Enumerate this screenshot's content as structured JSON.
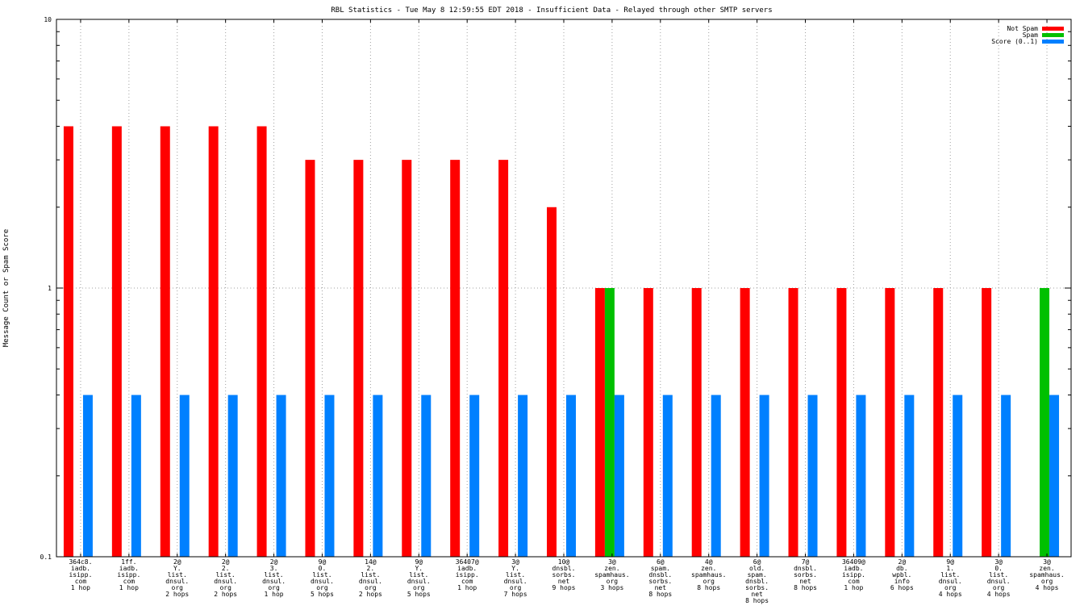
{
  "chart_data": {
    "type": "bar",
    "title": "RBL Statistics - Tue May  8 12:59:55 EDT 2018 - Insufficient Data - Relayed through other SMTP servers",
    "ylabel": "Message Count or Spam Score",
    "xlabel": "",
    "yscale": "log",
    "ylim": [
      0.1,
      10
    ],
    "yticks": [
      "10",
      "1",
      "0.1"
    ],
    "grid": true,
    "legend_position": "top-right",
    "categories": [
      [
        "364c8.",
        "iadb.",
        "isipp.",
        "com",
        "1 hop"
      ],
      [
        "1ff.",
        "iadb.",
        "isipp.",
        "com",
        "1 hop"
      ],
      [
        "2@",
        "Y.",
        "list.",
        "dnsul.",
        "org",
        "2 hops"
      ],
      [
        "2@",
        "2.",
        "list.",
        "dnsul.",
        "org",
        "2 hops"
      ],
      [
        "2@",
        "3.",
        "list.",
        "dnsul.",
        "org",
        "1 hop"
      ],
      [
        "9@",
        "0.",
        "list.",
        "dnsul.",
        "org",
        "5 hops"
      ],
      [
        "14@",
        "2.",
        "list.",
        "dnsul.",
        "org",
        "2 hops"
      ],
      [
        "9@",
        "Y.",
        "list.",
        "dnsul.",
        "org",
        "5 hops"
      ],
      [
        "36407@",
        "iadb.",
        "isipp.",
        "com",
        "1 hop"
      ],
      [
        "3@",
        "Y.",
        "list.",
        "dnsul.",
        "org",
        "7 hops"
      ],
      [
        "10@",
        "dnsbl.",
        "sorbs.",
        "net",
        "9 hops"
      ],
      [
        "3@",
        "zen.",
        "spamhaus.",
        "org",
        "3 hops"
      ],
      [
        "6@",
        "spam.",
        "dnsbl.",
        "sorbs.",
        "net",
        "8 hops"
      ],
      [
        "4@",
        "zen.",
        "spamhaus.",
        "org",
        "8 hops"
      ],
      [
        "6@",
        "old.",
        "spam.",
        "dnsbl.",
        "sorbs.",
        "net",
        "8 hops"
      ],
      [
        "7@",
        "dnsbl.",
        "sorbs.",
        "net",
        "8 hops"
      ],
      [
        "36409@",
        "iadb.",
        "isipp.",
        "com",
        "1 hop"
      ],
      [
        "2@",
        "db.",
        "wpbl.",
        "info",
        "6 hops"
      ],
      [
        "9@",
        "1.",
        "list.",
        "dnsul.",
        "org",
        "4 hops"
      ],
      [
        "3@",
        "0.",
        "list.",
        "dnsul.",
        "org",
        "4 hops"
      ],
      [
        "3@",
        "zen.",
        "spamhaus.",
        "org",
        "4 hops"
      ]
    ],
    "series": [
      {
        "name": "Not Spam",
        "color": "#ff0000",
        "values": [
          4,
          4,
          4,
          4,
          4,
          3,
          3,
          3,
          3,
          3,
          2,
          1,
          1,
          1,
          1,
          1,
          1,
          1,
          1,
          1,
          0
        ]
      },
      {
        "name": "Spam",
        "color": "#00c000",
        "values": [
          0,
          0,
          0,
          0,
          0,
          0,
          0,
          0,
          0,
          0,
          0,
          1,
          0,
          0,
          0,
          0,
          0,
          0,
          0,
          0,
          1
        ]
      },
      {
        "name": "Score (0..1)",
        "color": "#0080ff",
        "values": [
          0.4,
          0.4,
          0.4,
          0.4,
          0.4,
          0.4,
          0.4,
          0.4,
          0.4,
          0.4,
          0.4,
          0.4,
          0.4,
          0.4,
          0.4,
          0.4,
          0.4,
          0.4,
          0.4,
          0.4,
          0.4
        ]
      }
    ]
  }
}
